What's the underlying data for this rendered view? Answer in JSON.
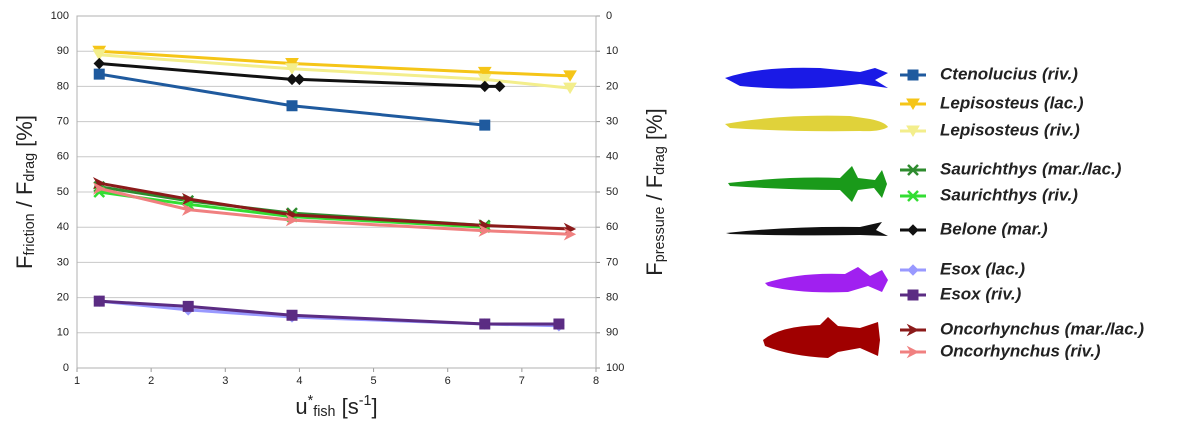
{
  "chart_data": {
    "type": "line",
    "xlabel_parts": [
      {
        "text": "u",
        "pos": "base"
      },
      {
        "text": "*",
        "pos": "sup"
      },
      {
        "text": "fish",
        "pos": "sub"
      },
      {
        "text": " [s",
        "pos": "base"
      },
      {
        "text": "-1",
        "pos": "sup"
      },
      {
        "text": "]",
        "pos": "base"
      }
    ],
    "ylabel_parts": [
      {
        "text": "F",
        "pos": "base"
      },
      {
        "text": "friction",
        "pos": "sub"
      },
      {
        "text": " / F",
        "pos": "base"
      },
      {
        "text": "drag",
        "pos": "sub"
      },
      {
        "text": " [%]",
        "pos": "base"
      }
    ],
    "y2label_parts": [
      {
        "text": "F",
        "pos": "base"
      },
      {
        "text": "pressure",
        "pos": "sub"
      },
      {
        "text": " / F",
        "pos": "base"
      },
      {
        "text": "drag",
        "pos": "sub"
      },
      {
        "text": " [%]",
        "pos": "base"
      }
    ],
    "xlim": [
      1,
      8
    ],
    "xticks": [
      1,
      2,
      3,
      4,
      5,
      6,
      7,
      8
    ],
    "ylim": [
      0,
      100
    ],
    "yticks": [
      0,
      10,
      20,
      30,
      40,
      50,
      60,
      70,
      80,
      90,
      100
    ],
    "y2lim": [
      100,
      0
    ],
    "y2ticks": [
      0,
      10,
      20,
      30,
      40,
      50,
      60,
      70,
      80,
      90,
      100
    ],
    "grid": true,
    "series": [
      {
        "name": "Ctenolucius (riv.)",
        "color": "#1f5a9e",
        "marker": "square",
        "x": [
          1.3,
          3.9,
          6.5
        ],
        "values": [
          83.5,
          74.5,
          69
        ]
      },
      {
        "name": "Lepisosteus (lac.)",
        "color": "#f5c518",
        "marker": "triangle-down",
        "x": [
          1.3,
          3.9,
          6.5,
          7.65
        ],
        "values": [
          90,
          86.5,
          84,
          83
        ]
      },
      {
        "name": "Lepisosteus (riv.)",
        "color": "#f3ee8c",
        "marker": "triangle-down",
        "x": [
          1.3,
          3.9,
          6.5,
          7.65
        ],
        "values": [
          89,
          85,
          82,
          79.5
        ]
      },
      {
        "name": "Saurichthys (mar./lac.)",
        "color": "#2e8b2e",
        "marker": "star",
        "x": [
          1.3,
          2.5,
          3.9,
          6.5
        ],
        "values": [
          51.5,
          47.5,
          44,
          40.5
        ]
      },
      {
        "name": "Saurichthys (riv.)",
        "color": "#33dd33",
        "marker": "star",
        "x": [
          1.3,
          2.5,
          3.9,
          6.5
        ],
        "values": [
          50,
          46.5,
          43,
          40
        ]
      },
      {
        "name": "Belone (mar.)",
        "color": "#111111",
        "marker": "diamond",
        "x": [
          1.3,
          3.9,
          4.0,
          6.5,
          6.7
        ],
        "values": [
          86.5,
          82,
          82,
          80,
          80
        ]
      },
      {
        "name": "Esox (lac.)",
        "color": "#9999ff",
        "marker": "diamond",
        "x": [
          1.3,
          2.5,
          3.9,
          6.5,
          7.5
        ],
        "values": [
          19,
          16.5,
          14.5,
          12.5,
          12
        ]
      },
      {
        "name": "Esox (riv.)",
        "color": "#5b2c83",
        "marker": "square",
        "x": [
          1.3,
          2.5,
          3.9,
          6.5,
          7.5
        ],
        "values": [
          19,
          17.5,
          15,
          12.5,
          12.5
        ]
      },
      {
        "name": "Oncorhynchus (mar./lac.)",
        "color": "#8b1a1a",
        "marker": "arrow",
        "x": [
          1.3,
          2.5,
          3.9,
          6.5,
          7.65
        ],
        "values": [
          52.5,
          48,
          43.5,
          40.5,
          39.5
        ]
      },
      {
        "name": "Oncorhynchus (riv.)",
        "color": "#f08080",
        "marker": "arrow",
        "x": [
          1.3,
          2.5,
          3.9,
          6.5,
          7.65
        ],
        "values": [
          51,
          45,
          42,
          39,
          38
        ]
      }
    ]
  }
}
